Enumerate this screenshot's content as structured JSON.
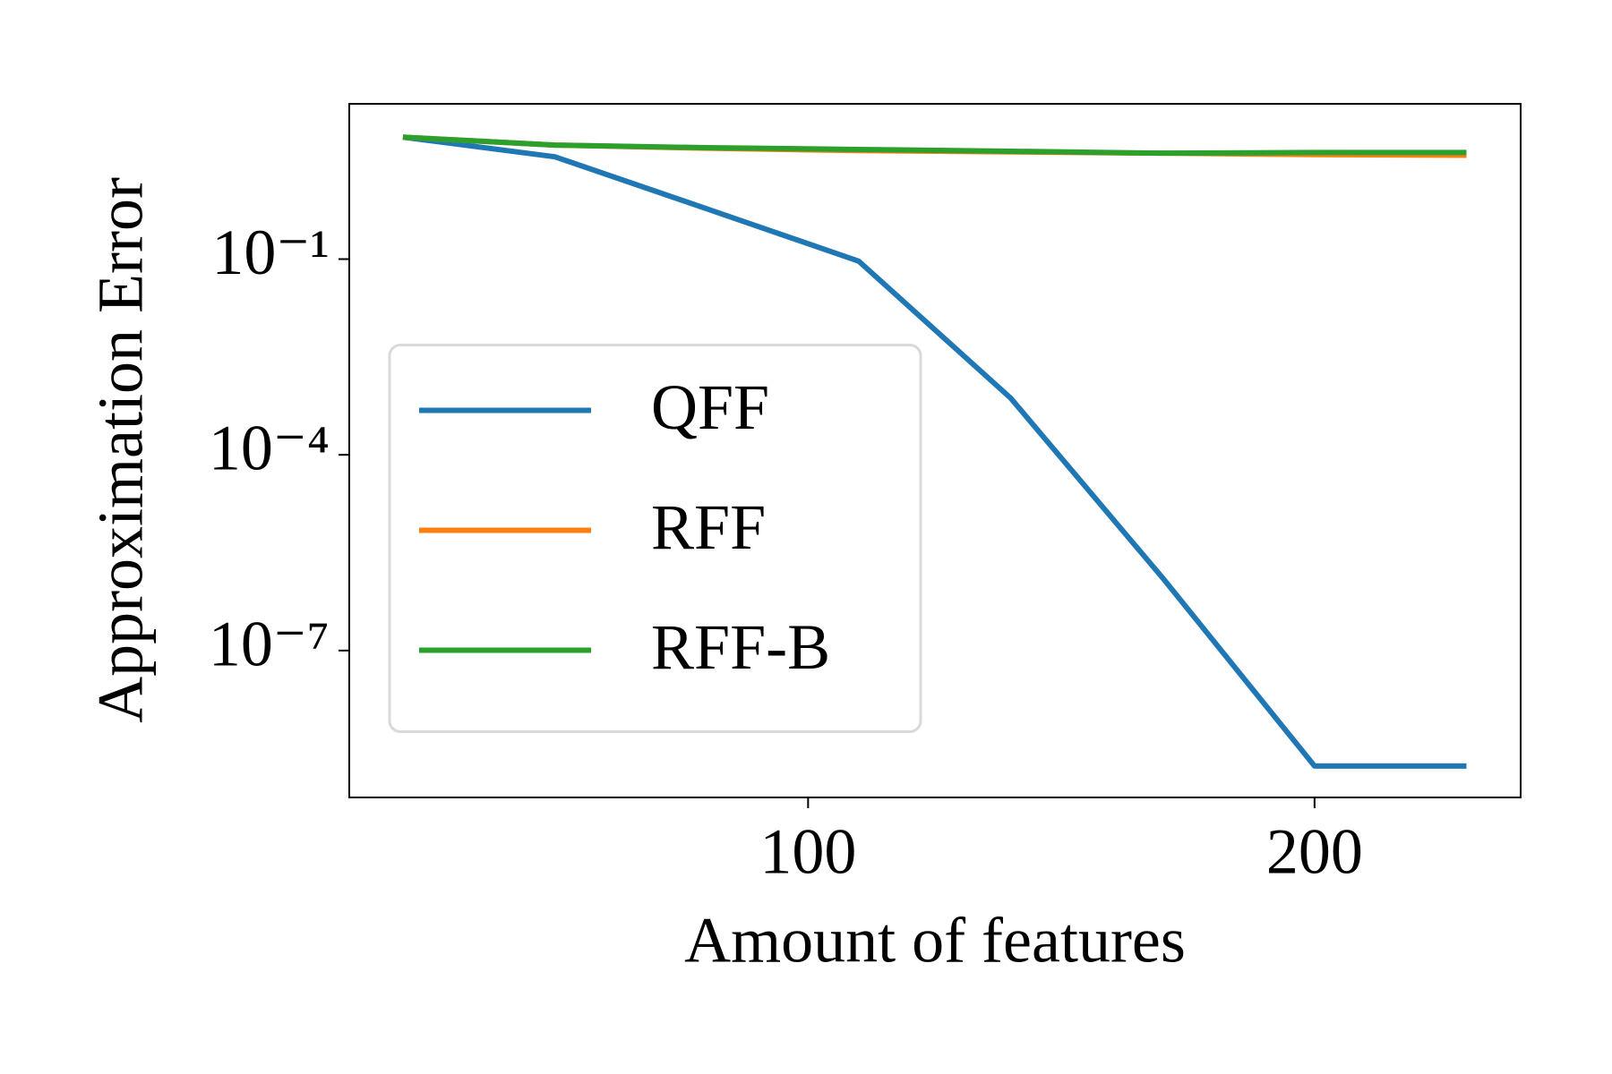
{
  "chart_data": {
    "type": "line",
    "x_label": "Amount of features",
    "y_label": "Approximation Error",
    "x": [
      20,
      50,
      80,
      110,
      140,
      170,
      200,
      230
    ],
    "series": [
      {
        "name": "QFF",
        "color": "#1f77b4",
        "values": [
          7.4,
          3.7,
          0.59,
          0.093,
          0.00074,
          1.3e-06,
          1.7e-09,
          1.7e-09
        ]
      },
      {
        "name": "RFF",
        "color": "#ff7f0e",
        "values": [
          7.4,
          5.6,
          5.0,
          4.6,
          4.4,
          4.2,
          4.0,
          3.9
        ]
      },
      {
        "name": "RFF-B",
        "color": "#2ca02c",
        "values": [
          7.4,
          5.6,
          5.1,
          4.8,
          4.5,
          4.2,
          4.3,
          4.3
        ]
      }
    ],
    "xlim": [
      9.4,
      240.7
    ],
    "xticks": [
      100,
      200
    ],
    "ylim": [
      5.6e-10,
      24
    ],
    "log_y": true,
    "yticks": [
      {
        "value": 0.1,
        "label": "10⁻¹"
      },
      {
        "value": 0.0001,
        "label": "10⁻⁴"
      },
      {
        "value": 1e-07,
        "label": "10⁻⁷"
      }
    ],
    "legend": "center left"
  }
}
